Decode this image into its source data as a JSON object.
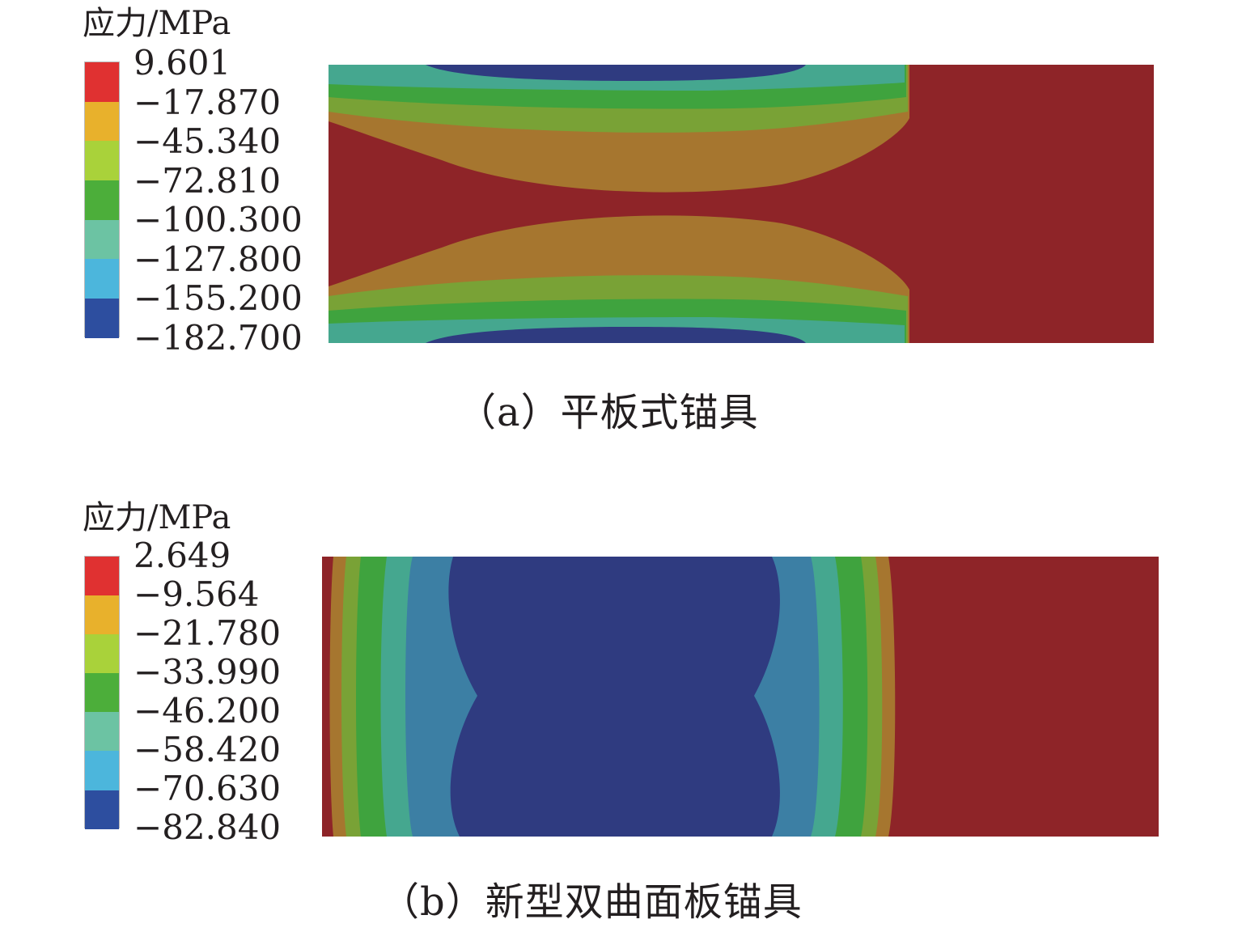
{
  "panel_a": {
    "legend_title": "应力/MPa",
    "legend_values": [
      "9.601",
      "−17.870",
      "−45.340",
      "−72.810",
      "−100.300",
      "−127.800",
      "−155.200",
      "−182.700"
    ],
    "legend_colors": [
      "#e03131",
      "#e8b12c",
      "#a9d23a",
      "#4cae3a",
      "#6cc3a3",
      "#4cb6dc",
      "#2d4e9f"
    ],
    "caption": "（a）平板式锚具"
  },
  "panel_b": {
    "legend_title": "应力/MPa",
    "legend_values": [
      "2.649",
      "−9.564",
      "−21.780",
      "−33.990",
      "−46.200",
      "−58.420",
      "−70.630",
      "−82.840"
    ],
    "legend_colors": [
      "#e03131",
      "#e8b12c",
      "#a9d23a",
      "#4cae3a",
      "#6cc3a3",
      "#4cb6dc",
      "#2d4e9f"
    ],
    "caption": "（b）新型双曲面板锚具"
  },
  "contour_colors": {
    "red": "#8e2428",
    "orange": "#a6762f",
    "yellow_green": "#79a236",
    "green": "#3fa33e",
    "teal": "#45a78f",
    "light_blue": "#4c92b0",
    "steel_blue": "#3c7fa4",
    "blue": "#2f3b80"
  }
}
